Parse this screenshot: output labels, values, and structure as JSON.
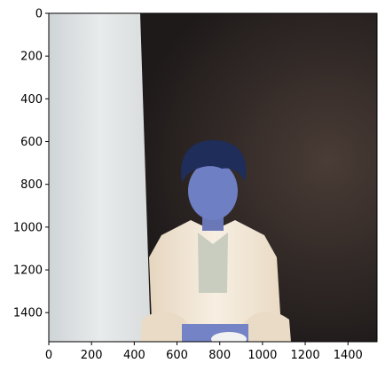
{
  "chart_data": {
    "type": "image",
    "title": "",
    "xlabel": "",
    "ylabel": "",
    "xlim": [
      0,
      1536
    ],
    "ylim": [
      1536,
      0
    ],
    "x_ticks": [
      0,
      200,
      400,
      600,
      800,
      1000,
      1200,
      1400
    ],
    "y_ticks": [
      0,
      200,
      400,
      600,
      800,
      1000,
      1200,
      1400
    ],
    "grid": false,
    "image_subject": "person with blue-tinted face and white shirt seated in front of white wall and dark background",
    "colors": {
      "wall": "#e4e8ea",
      "background_dark": "#2b2423",
      "shirt": "#f3e8d8",
      "hair": "#1e2d5a",
      "skin_tint": "#6f7fc4",
      "spine": "#000000"
    }
  }
}
